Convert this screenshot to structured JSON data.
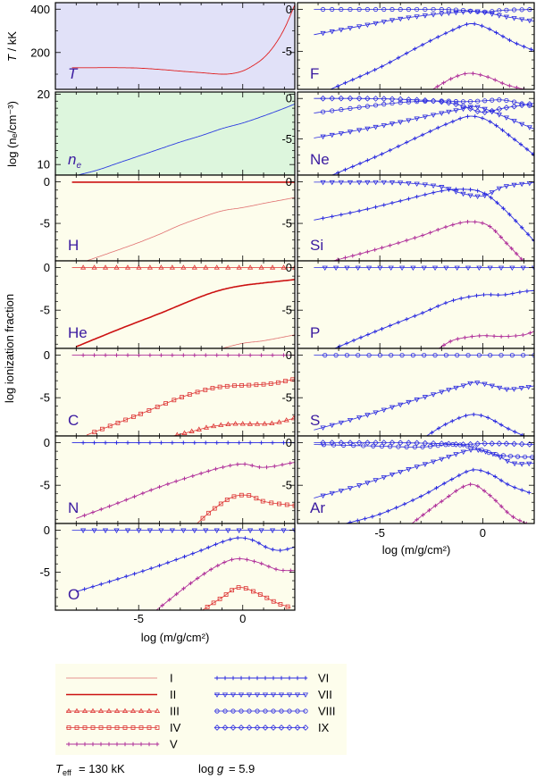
{
  "chart_data": {
    "type": "line",
    "axes": {
      "x_title": "log (m/g/cm²)",
      "y_left_T": "T / kK",
      "y_left_ne": "log (nₑ/cm⁻³)",
      "y_ionfrac": "log ionization fraction",
      "x_ticks": [
        "-5",
        "0"
      ],
      "xlim": [
        -9,
        2.5
      ],
      "ylim_ionfrac": [
        -9.5,
        0.8
      ]
    },
    "legend": [
      "I",
      "II",
      "III",
      "IV",
      "V",
      "VI",
      "VII",
      "VIII",
      "IX"
    ],
    "footer": {
      "teff": "= 130 kK",
      "logg": "= 5.9"
    },
    "panels": [
      {
        "label": "T",
        "kind": "temperature",
        "ylim": [
          30,
          430
        ],
        "yticks": [
          "200",
          "400"
        ],
        "x": [
          -8.2,
          -7,
          -6,
          -5,
          -4,
          -3,
          -2,
          -1,
          -0.5,
          0,
          0.5,
          1,
          1.5,
          2,
          2.5
        ],
        "y": [
          130,
          130,
          130,
          128,
          122,
          114,
          107,
          100,
          103,
          115,
          140,
          175,
          230,
          310,
          420
        ]
      },
      {
        "label": "n_e",
        "kind": "density",
        "ylim": [
          8.5,
          20.3
        ],
        "yticks": [
          "10",
          "20"
        ],
        "x": [
          -8.2,
          -7,
          -6,
          -5,
          -4,
          -3,
          -2,
          -1,
          0,
          1,
          2,
          2.5
        ],
        "y": [
          8.3,
          9.2,
          10.2,
          11.2,
          12.2,
          13.2,
          14.1,
          15.1,
          15.9,
          16.9,
          18.0,
          18.6
        ]
      },
      {
        "label": "H",
        "kind": "ion",
        "series": [
          {
            "ion": "I",
            "x": [
              -7.5,
              -6,
              -5,
              -4,
              -3,
              -2,
              -1,
              0,
              1,
              2.5
            ],
            "y": [
              -9.5,
              -8.2,
              -7.3,
              -6.3,
              -5.2,
              -4.3,
              -3.5,
              -3.1,
              -2.6,
              -1.9
            ]
          },
          {
            "ion": "II",
            "x": [
              -8.2,
              2.5
            ],
            "y": [
              -0.05,
              -0.05
            ]
          }
        ]
      },
      {
        "label": "He",
        "kind": "ion",
        "series": [
          {
            "ion": "II",
            "x": [
              -8,
              -6,
              -4,
              -2,
              -1,
              0,
              1,
              2.5
            ],
            "y": [
              -9.3,
              -7.3,
              -5.4,
              -3.4,
              -2.6,
              -2.1,
              -1.8,
              -1.4
            ]
          },
          {
            "ion": "I",
            "x": [
              -1,
              0,
              1,
              2.5
            ],
            "y": [
              -9.5,
              -8.9,
              -8.6,
              -7.9
            ]
          },
          {
            "ion": "III",
            "x": [
              -8.2,
              2.5
            ],
            "y": [
              0,
              0
            ]
          }
        ]
      },
      {
        "label": "C",
        "kind": "ion",
        "series": [
          {
            "ion": "IV",
            "x": [
              -7.5,
              -5,
              -3,
              -1.5,
              -0.5,
              0.5,
              1.5,
              2.5
            ],
            "y": [
              -9.4,
              -7.0,
              -5.0,
              -3.9,
              -3.6,
              -3.5,
              -3.3,
              -2.8
            ]
          },
          {
            "ion": "III",
            "x": [
              -3.5,
              -2.5,
              -1.5,
              -0.5,
              0.5,
              1.5,
              2.5
            ],
            "y": [
              -9.6,
              -9.0,
              -8.4,
              -8.1,
              -8.1,
              -8.0,
              -7.4
            ]
          },
          {
            "ion": "V",
            "x": [
              -8.2,
              2.5
            ],
            "y": [
              0,
              0
            ]
          }
        ]
      },
      {
        "label": "N",
        "kind": "ion",
        "series": [
          {
            "ion": "V",
            "x": [
              -8,
              -6,
              -4,
              -2,
              -1,
              0,
              1,
              2.5
            ],
            "y": [
              -8.9,
              -7.1,
              -5.2,
              -3.6,
              -2.9,
              -2.5,
              -2.9,
              -2.3
            ]
          },
          {
            "ion": "IV",
            "x": [
              -2.2,
              -1.5,
              -0.5,
              0.3,
              1,
              2.5
            ],
            "y": [
              -9.5,
              -8,
              -6.4,
              -6.2,
              -6.9,
              -7.4
            ]
          },
          {
            "ion": "VI",
            "x": [
              -8.2,
              2.5
            ],
            "y": [
              0,
              0
            ]
          }
        ]
      },
      {
        "label": "O",
        "kind": "ion",
        "series": [
          {
            "ion": "VI",
            "x": [
              -8,
              -6,
              -4,
              -2,
              -1,
              -0.2,
              0.5,
              1.2,
              1.8,
              2.5
            ],
            "y": [
              -7.3,
              -5.8,
              -4.2,
              -2.4,
              -1.4,
              -0.9,
              -1.2,
              -2.1,
              -2.4,
              -2.0
            ]
          },
          {
            "ion": "V",
            "x": [
              -4.2,
              -2.5,
              -1.2,
              -0.3,
              0.7,
              1.7,
              2.5
            ],
            "y": [
              -9.6,
              -6.3,
              -4.2,
              -3.4,
              -3.8,
              -4.7,
              -4.8
            ]
          },
          {
            "ion": "IV",
            "x": [
              -2,
              -1,
              -0.2,
              0.8,
              1.6,
              2.3
            ],
            "y": [
              -9.6,
              -8,
              -6.8,
              -7.6,
              -8.6,
              -9.2
            ]
          },
          {
            "ion": "VII",
            "x": [
              -8.2,
              2.5
            ],
            "y": [
              0,
              0
            ]
          }
        ]
      },
      {
        "label": "F",
        "kind": "ion",
        "series": [
          {
            "ion": "VII",
            "x": [
              -8.2,
              -6,
              -4,
              -2,
              -1,
              -0.5,
              0,
              1,
              2.5
            ],
            "y": [
              -3.0,
              -2.0,
              -1.1,
              -0.5,
              -0.3,
              -0.2,
              -0.3,
              -0.8,
              -1.4
            ]
          },
          {
            "ion": "VI",
            "x": [
              -7.4,
              -5,
              -3,
              -1.5,
              -0.6,
              0.2,
              1.5,
              2.5
            ],
            "y": [
              -9.5,
              -6.9,
              -4.3,
              -2.5,
              -1.7,
              -2.2,
              -3.9,
              -4.9
            ]
          },
          {
            "ion": "V",
            "x": [
              -2.5,
              -1.5,
              -0.7,
              0.2,
              1.2,
              2.2
            ],
            "y": [
              -9.6,
              -8.2,
              -7.6,
              -8.0,
              -9.0,
              -9.6
            ]
          },
          {
            "ion": "VIII",
            "x": [
              -8.2,
              -6,
              -4,
              -2,
              -1,
              0,
              1,
              2.5
            ],
            "y": [
              0,
              0,
              0,
              0,
              -0.1,
              -0.3,
              -0.1,
              0
            ]
          }
        ]
      },
      {
        "label": "Ne",
        "kind": "ion",
        "series": [
          {
            "ion": "VII",
            "x": [
              -8.2,
              -6,
              -4,
              -2,
              -1,
              -0.5,
              0,
              1,
              2.5
            ],
            "y": [
              -4.9,
              -3.9,
              -2.9,
              -1.8,
              -1.3,
              -1.0,
              -1.2,
              -2.2,
              -3.8
            ]
          },
          {
            "ion": "VI",
            "x": [
              -7.4,
              -5,
              -3,
              -1.5,
              -0.6,
              0.3,
              1.5,
              2.5
            ],
            "y": [
              -9.6,
              -7.0,
              -4.6,
              -2.9,
              -2.2,
              -2.8,
              -5.0,
              -7.0
            ]
          },
          {
            "ion": "VIII",
            "x": [
              -8.2,
              -6,
              -4,
              -2,
              -1,
              0,
              1,
              2.5
            ],
            "y": [
              -1.8,
              -1.1,
              -0.5,
              -0.3,
              -0.4,
              -0.3,
              -0.2,
              -1.0
            ]
          },
          {
            "ion": "IX",
            "x": [
              -8.2,
              -6,
              -4,
              -2,
              -1,
              0,
              1,
              2.5
            ],
            "y": [
              0,
              0,
              -0.1,
              -0.4,
              -0.9,
              -1.7,
              -1.2,
              -0.6
            ]
          }
        ]
      },
      {
        "label": "Si",
        "kind": "ion",
        "series": [
          {
            "ion": "VI",
            "x": [
              -8.2,
              -6,
              -4,
              -2,
              -1,
              0,
              1,
              2.5
            ],
            "y": [
              -4.6,
              -3.5,
              -2.3,
              -1.1,
              -0.9,
              -1.3,
              -3.2,
              -7.1
            ]
          },
          {
            "ion": "V",
            "x": [
              -7.4,
              -5,
              -3,
              -1.5,
              -0.6,
              0.3,
              1.2,
              2
            ],
            "y": [
              -9.6,
              -8,
              -6.5,
              -5.2,
              -4.8,
              -5.3,
              -7.5,
              -9.6
            ]
          },
          {
            "ion": "VII",
            "x": [
              -8.2,
              -6,
              -4,
              -2,
              -1,
              0,
              1,
              2.5
            ],
            "y": [
              -0.05,
              -0.05,
              -0.1,
              -0.6,
              -1.4,
              -1.7,
              -0.6,
              -0.1
            ]
          }
        ]
      },
      {
        "label": "P",
        "kind": "ion",
        "series": [
          {
            "ion": "VI",
            "x": [
              -7.3,
              -5,
              -3,
              -1.5,
              0,
              1,
              2,
              2.5
            ],
            "y": [
              -9.6,
              -7.3,
              -5.4,
              -3.9,
              -3.2,
              -3.2,
              -2.8,
              -2.7
            ]
          },
          {
            "ion": "V",
            "x": [
              -2.2,
              -1.5,
              -0.8,
              0,
              1,
              2,
              2.5
            ],
            "y": [
              -9.6,
              -8.6,
              -8.2,
              -8.0,
              -8.1,
              -7.9,
              -7.5
            ]
          },
          {
            "ion": "VII",
            "x": [
              -8.2,
              2.5
            ],
            "y": [
              0,
              0
            ]
          }
        ]
      },
      {
        "label": "S",
        "kind": "ion",
        "series": [
          {
            "ion": "VII",
            "x": [
              -8.2,
              -6,
              -4,
              -2,
              -1,
              -0.4,
              0.5,
              1.2,
              2,
              2.5
            ],
            "y": [
              -8.8,
              -7.3,
              -5.8,
              -4.3,
              -3.6,
              -3.2,
              -3.6,
              -4.0,
              -3.8,
              -3.6
            ]
          },
          {
            "ion": "VI",
            "x": [
              -2.8,
              -1.7,
              -0.6,
              0.2,
              1.2,
              2.1
            ],
            "y": [
              -9.6,
              -8,
              -7.0,
              -7.3,
              -8.6,
              -9.6
            ]
          },
          {
            "ion": "VIII",
            "x": [
              -8.2,
              2.5
            ],
            "y": [
              0,
              0
            ]
          }
        ]
      },
      {
        "label": "Ar",
        "kind": "ion",
        "series": [
          {
            "ion": "VII",
            "x": [
              -8.2,
              -6,
              -4,
              -2,
              -1,
              -0.4,
              0.5,
              1.5,
              2.5
            ],
            "y": [
              -6.5,
              -5.0,
              -3.4,
              -1.9,
              -1.1,
              -0.8,
              -1.3,
              -2.4,
              -2.4
            ]
          },
          {
            "ion": "VI",
            "x": [
              -6.8,
              -5,
              -3,
              -1.5,
              -0.5,
              0.3,
              1.3,
              2.3
            ],
            "y": [
              -9.6,
              -8.4,
              -6.3,
              -4.3,
              -3.2,
              -3.6,
              -5.0,
              -5.9
            ]
          },
          {
            "ion": "V",
            "x": [
              -3.5,
              -2,
              -0.6,
              0.3,
              1.4,
              2.2
            ],
            "y": [
              -9.6,
              -6.9,
              -4.9,
              -6.1,
              -8.6,
              -9.6
            ]
          },
          {
            "ion": "VIII",
            "x": [
              -8.2,
              -5,
              -3,
              -1.5,
              -0.5,
              0.5,
              1.5,
              2.5
            ],
            "y": [
              -0.2,
              -0.4,
              -0.5,
              -0.2,
              -0.5,
              -1.3,
              -1.6,
              -1.7
            ]
          },
          {
            "ion": "IX",
            "x": [
              -8.2,
              -6,
              -4,
              -2,
              -1,
              0,
              1,
              2.5
            ],
            "y": [
              0,
              0,
              0,
              -0.1,
              -0.2,
              -0.1,
              -0.1,
              -0.2
            ]
          }
        ]
      }
    ]
  }
}
